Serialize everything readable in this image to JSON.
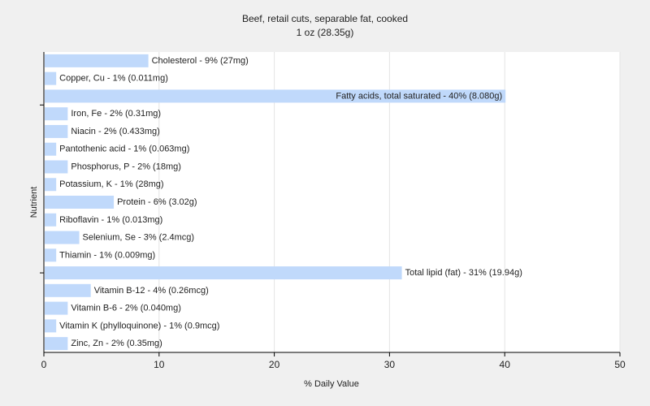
{
  "chart_data": {
    "type": "bar",
    "orientation": "horizontal",
    "title": "Beef, retail cuts, separable fat, cooked",
    "subtitle": "1 oz (28.35g)",
    "xlabel": "% Daily Value",
    "ylabel": "Nutrient",
    "xlim": [
      0,
      50
    ],
    "xticks": [
      0,
      10,
      20,
      30,
      40,
      50
    ],
    "grid": true,
    "bar_color": "#c0d9fb",
    "categories": [
      "Cholesterol",
      "Copper, Cu",
      "Fatty acids, total saturated",
      "Iron, Fe",
      "Niacin",
      "Pantothenic acid",
      "Phosphorus, P",
      "Potassium, K",
      "Protein",
      "Riboflavin",
      "Selenium, Se",
      "Thiamin",
      "Total lipid (fat)",
      "Vitamin B-12",
      "Vitamin B-6",
      "Vitamin K (phylloquinone)",
      "Zinc, Zn"
    ],
    "values": [
      9,
      1,
      40,
      2,
      2,
      1,
      2,
      1,
      6,
      1,
      3,
      1,
      31,
      4,
      2,
      1,
      2
    ],
    "labels": [
      "Cholesterol - 9% (27mg)",
      "Copper, Cu - 1% (0.011mg)",
      "Fatty acids, total saturated - 40% (8.080g)",
      "Iron, Fe - 2% (0.31mg)",
      "Niacin - 2% (0.433mg)",
      "Pantothenic acid - 1% (0.063mg)",
      "Phosphorus, P - 2% (18mg)",
      "Potassium, K - 1% (28mg)",
      "Protein - 6% (3.02g)",
      "Riboflavin - 1% (0.013mg)",
      "Selenium, Se - 3% (2.4mcg)",
      "Thiamin - 1% (0.009mg)",
      "Total lipid (fat) - 31% (19.94g)",
      "Vitamin B-12 - 4% (0.26mcg)",
      "Vitamin B-6 - 2% (0.040mg)",
      "Vitamin K (phylloquinone) - 1% (0.9mcg)",
      "Zinc, Zn - 2% (0.35mg)"
    ]
  }
}
